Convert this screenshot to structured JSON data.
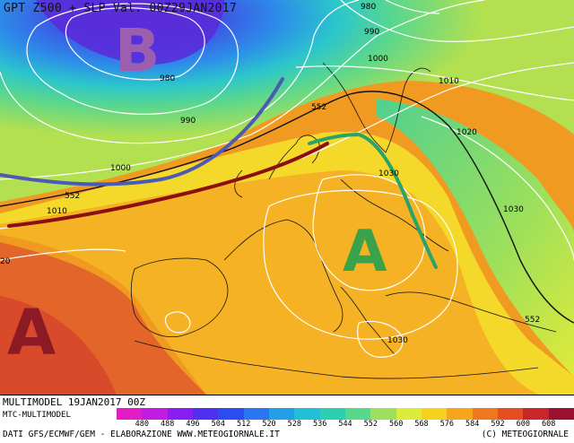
{
  "title": "GPT Z500 + SLP Val. 00Z29JAN2017",
  "centers": [
    {
      "letter": "B",
      "color": "#9c5fb0"
    },
    {
      "letter": "A",
      "color": "#3aa24a"
    },
    {
      "letter": "A",
      "color": "#8b1a24"
    }
  ],
  "isobar_labels": [
    "980",
    "990",
    "1000",
    "980",
    "990",
    "1000",
    "1010",
    "1020",
    "1030",
    "1030",
    "1030",
    "1010",
    "20"
  ],
  "z500_labels": [
    "552",
    "552",
    "552"
  ],
  "fronts": [
    {
      "name": "trough-axis",
      "color": "#4b5bb3"
    },
    {
      "name": "warm-axis",
      "color": "#8b0f0f"
    },
    {
      "name": "ridge-axis",
      "color": "#2aa36a"
    }
  ],
  "footer": {
    "model_run": "MULTIMODEL 19JAN2017 00Z",
    "model_name": "MTC-MULTIMODEL",
    "sources": "DATI GFS/ECMWF/GEM - ELABORAZIONE WWW.METEOGIORNALE.IT",
    "copyright": "(C) METEOGIORNALE"
  },
  "colorbar": {
    "ticks": [
      "480",
      "488",
      "496",
      "504",
      "512",
      "520",
      "528",
      "536",
      "544",
      "552",
      "560",
      "568",
      "576",
      "584",
      "592",
      "600",
      "608"
    ],
    "colors": [
      "#e21cc7",
      "#c21ce0",
      "#8a1ef0",
      "#5030f0",
      "#2c4ef0",
      "#2a76f2",
      "#239ee8",
      "#22c0d8",
      "#2ad0b0",
      "#58d88a",
      "#9ee05e",
      "#dcec3c",
      "#f6d21e",
      "#f6a51c",
      "#ef781e",
      "#e44e22",
      "#c8262a",
      "#9a1030"
    ]
  }
}
